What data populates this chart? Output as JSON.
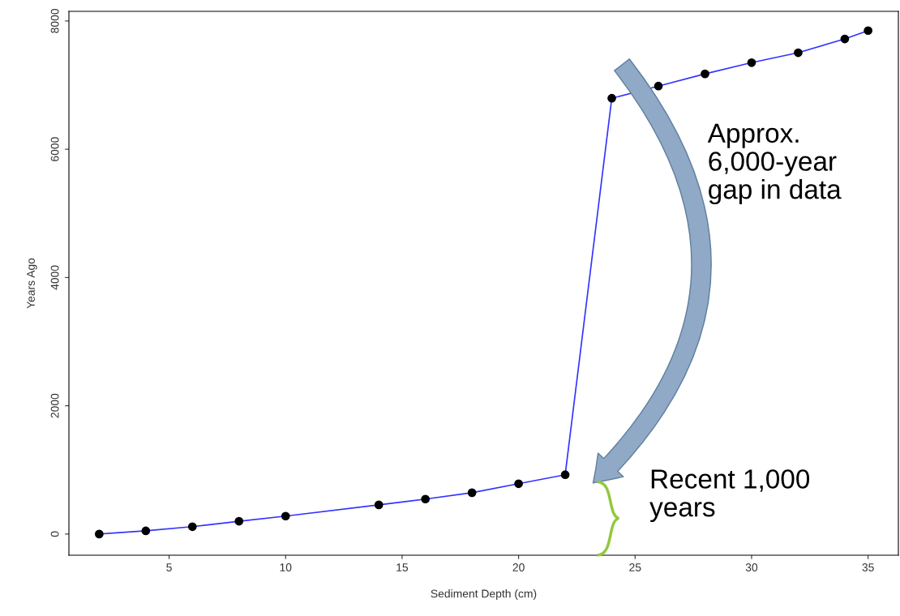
{
  "chart_data": {
    "type": "line",
    "xlabel": "Sediment Depth (cm)",
    "ylabel": "Years Ago",
    "x": [
      2,
      4,
      6,
      8,
      10,
      14,
      16,
      18,
      20,
      22,
      24,
      26,
      28,
      30,
      32,
      34,
      35
    ],
    "series": [
      {
        "color": "#3333ff",
        "values": [
          0,
          50,
          115,
          200,
          280,
          455,
          545,
          645,
          785,
          925,
          6795,
          6985,
          7175,
          7350,
          7505,
          7720,
          7850
        ]
      }
    ],
    "marker": "circle",
    "xlim": [
      0.7,
      36.3
    ],
    "ylim": [
      -330,
      8150
    ],
    "xticks": [
      5,
      10,
      15,
      20,
      25,
      30,
      35
    ],
    "yticks": [
      0,
      2000,
      4000,
      6000,
      8000
    ],
    "grid": false,
    "legend": false,
    "annotations": [
      "Approx.\n6,000-year\ngap in data",
      "Recent 1,000\nyears"
    ]
  }
}
